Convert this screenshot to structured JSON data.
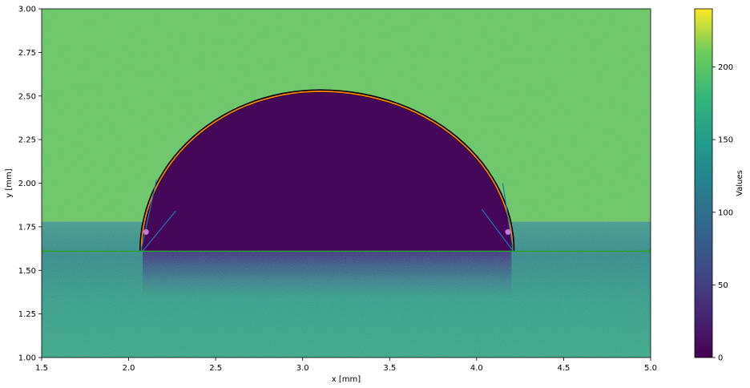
{
  "chart_data": {
    "type": "heatmap",
    "title": "",
    "xlabel": "x [mm]",
    "ylabel": "y [mm]",
    "xlim": [
      1.5,
      5.0
    ],
    "ylim": [
      1.0,
      3.0
    ],
    "x_ticks": [
      "1.5",
      "2.0",
      "2.5",
      "3.0",
      "3.5",
      "4.0",
      "4.5",
      "5.0"
    ],
    "y_ticks": [
      "1.00",
      "1.25",
      "1.50",
      "1.75",
      "2.00",
      "2.25",
      "2.50",
      "2.75",
      "3.00"
    ],
    "colormap": "viridis",
    "colorbar": {
      "label": "Values",
      "range": [
        0,
        240
      ],
      "ticks": [
        "0",
        "50",
        "100",
        "150",
        "200"
      ]
    },
    "regions": {
      "background_upper_value": 205,
      "substrate_lower_value": 140,
      "droplet_interior_value": 5,
      "substrate_y_range": [
        1.0,
        1.78
      ]
    },
    "baseline": {
      "y": 1.61,
      "x_range": [
        1.5,
        5.0
      ],
      "color": "#2ca02c"
    },
    "droplet": {
      "contact_left_x": 2.08,
      "contact_right_x": 4.2,
      "apex_x": 3.1,
      "apex_y": 2.52,
      "baseline_y": 1.61,
      "edge_color": "#000000",
      "fit_color": "#ff7f0e"
    },
    "contact_points": [
      {
        "x": 2.1,
        "y": 1.72,
        "color": "#c678dd"
      },
      {
        "x": 4.18,
        "y": 1.72,
        "color": "#c678dd"
      }
    ],
    "tangent_lines": [
      {
        "x": [
          2.07,
          2.16
        ],
        "y": [
          1.61,
          2.02
        ],
        "color": "#1f77b4"
      },
      {
        "x": [
          2.08,
          2.27
        ],
        "y": [
          1.61,
          1.84
        ],
        "color": "#1f77b4"
      },
      {
        "x": [
          4.21,
          4.15
        ],
        "y": [
          1.61,
          2.0
        ],
        "color": "#1f77b4"
      },
      {
        "x": [
          4.21,
          4.03
        ],
        "y": [
          1.61,
          1.85
        ],
        "color": "#1f77b4"
      }
    ]
  }
}
